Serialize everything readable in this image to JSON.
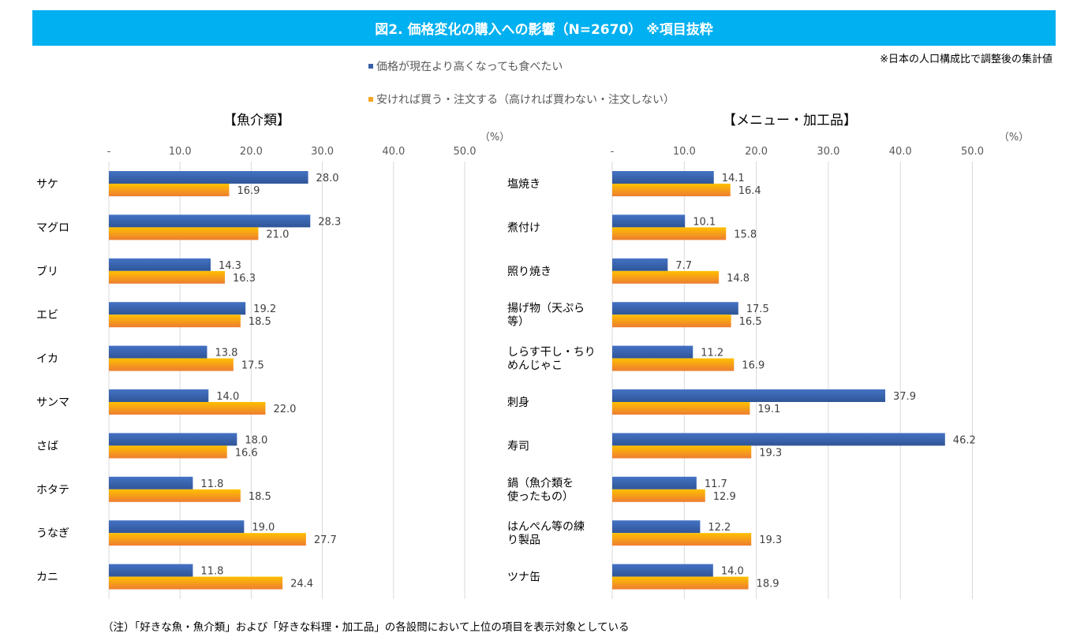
{
  "title": "図2. 価格変化の購入への影響（N=2670） ※項目抜粋",
  "note_top": "※日本の人口構成比で調整後の集計値",
  "footnote": "（注）「好きな魚・魚介類」および「好きな料理・加工品」の各設問において上位の項目を表示対象としている",
  "legend": [
    {
      "label": "価格が現在より高くなっても食べたい",
      "color": "#3a5fa8"
    },
    {
      "label": "安ければ買う・注文する（高ければ買わない・注文しない）",
      "color": "#f5a623"
    }
  ],
  "chart_data": [
    {
      "type": "bar",
      "orientation": "horizontal",
      "title": "【魚介類】",
      "unit_label": "（%）",
      "xlim": [
        0,
        55
      ],
      "ticks": [
        0,
        10,
        20,
        30,
        40,
        50
      ],
      "tick_labels": [
        "-",
        "10.0",
        "20.0",
        "30.0",
        "40.0",
        "50.0"
      ],
      "grid": true,
      "legend_position": "top-center",
      "categories": [
        "サケ",
        "マグロ",
        "ブリ",
        "エビ",
        "イカ",
        "サンマ",
        "さば",
        "ホタテ",
        "うなぎ",
        "カニ"
      ],
      "series": [
        {
          "name": "価格が現在より高くなっても食べたい",
          "values": [
            28.0,
            28.3,
            14.3,
            19.2,
            13.8,
            14.0,
            18.0,
            11.8,
            19.0,
            11.8
          ]
        },
        {
          "name": "安ければ買う・注文する（高ければ買わない・注文しない）",
          "values": [
            16.9,
            21.0,
            16.3,
            18.5,
            17.5,
            22.0,
            16.6,
            18.5,
            27.7,
            24.4
          ]
        }
      ]
    },
    {
      "type": "bar",
      "orientation": "horizontal",
      "title": "【メニュー・加工品】",
      "unit_label": "（%）",
      "xlim": [
        0,
        55
      ],
      "ticks": [
        0,
        10,
        20,
        30,
        40,
        50
      ],
      "tick_labels": [
        "-",
        "10.0",
        "20.0",
        "30.0",
        "40.0",
        "50.0"
      ],
      "grid": true,
      "legend_position": "top-center",
      "categories": [
        "塩焼き",
        "煮付け",
        "照り焼き",
        "揚げ物（天ぷら\n等）",
        "しらす干し・ちり\nめんじゃこ",
        "刺身",
        "寿司",
        "鍋（魚介類を\n使ったもの）",
        "はんぺん等の練\nり製品",
        "ツナ缶"
      ],
      "series": [
        {
          "name": "価格が現在より高くなっても食べたい",
          "values": [
            14.1,
            10.1,
            7.7,
            17.5,
            11.2,
            37.9,
            46.2,
            11.7,
            12.2,
            14.0
          ]
        },
        {
          "name": "安ければ買う・注文する（高ければ買わない・注文しない）",
          "values": [
            16.4,
            15.8,
            14.8,
            16.5,
            16.9,
            19.1,
            19.3,
            12.9,
            19.3,
            18.9
          ]
        }
      ]
    }
  ]
}
